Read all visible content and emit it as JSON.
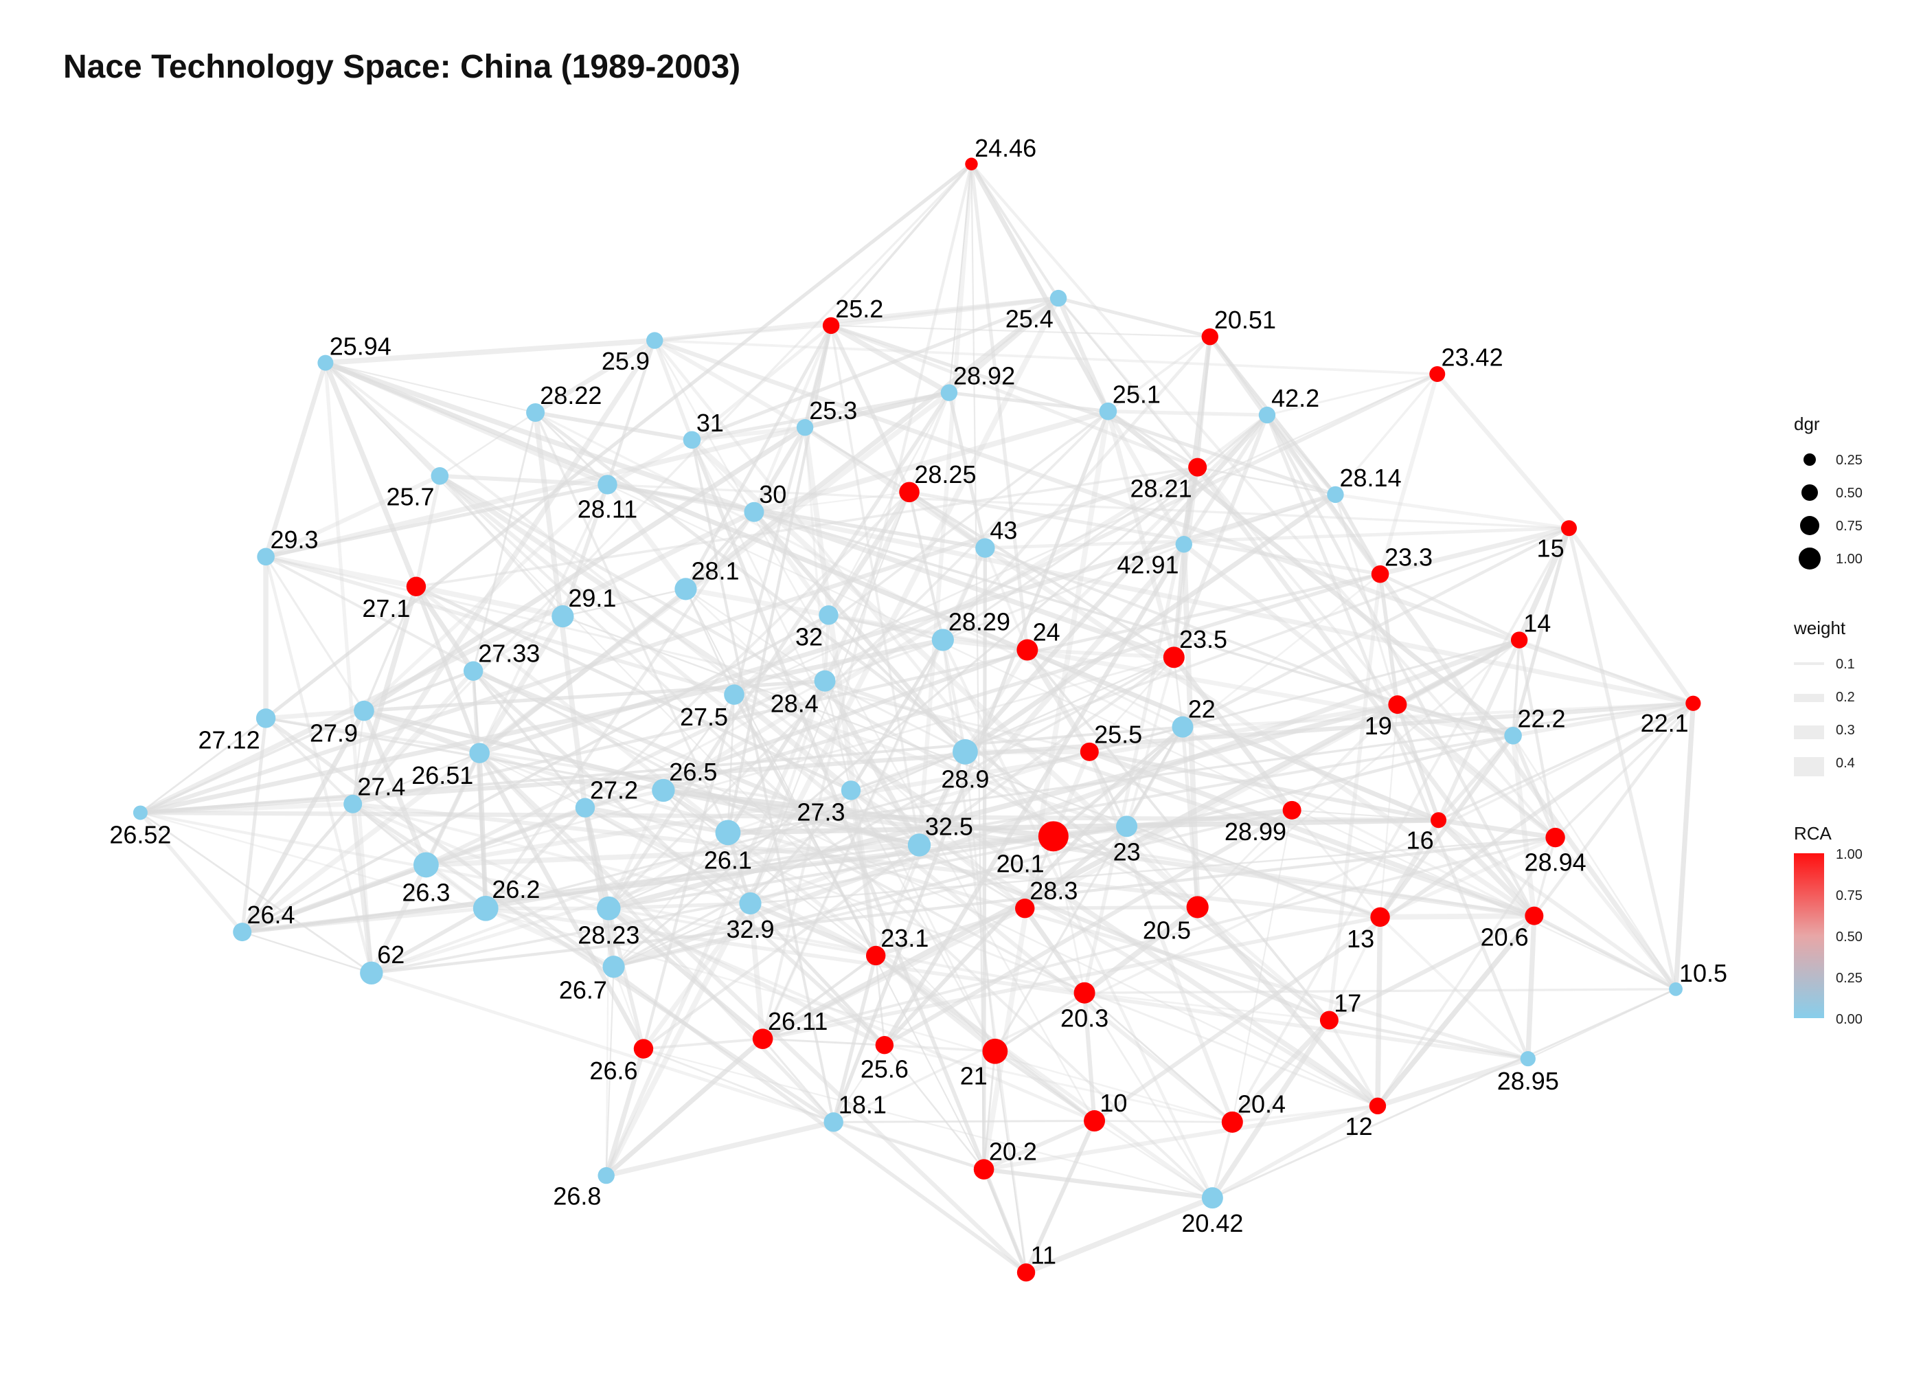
{
  "title": "Nace Technology Space: China (1989-2003)",
  "colors": {
    "rca_low": "#87ceeb",
    "rca_high": "#ff0000",
    "edge": "#dcdcdc",
    "background": "#ffffff"
  },
  "nodes": [
    {
      "id": "24.46",
      "rca": 1.0,
      "dgr": 0.04,
      "label_pos": "ne"
    },
    {
      "id": "25.2",
      "rca": 1.0,
      "dgr": 0.15,
      "label_pos": "ne"
    },
    {
      "id": "25.4",
      "rca": 0.0,
      "dgr": 0.15,
      "label_pos": "sw"
    },
    {
      "id": "20.51",
      "rca": 1.0,
      "dgr": 0.15,
      "label_pos": "ne"
    },
    {
      "id": "23.42",
      "rca": 1.0,
      "dgr": 0.12,
      "label_pos": "ne"
    },
    {
      "id": "25.94",
      "rca": 0.0,
      "dgr": 0.12,
      "label_pos": "ne"
    },
    {
      "id": "25.9",
      "rca": 0.0,
      "dgr": 0.15,
      "label_pos": "sw"
    },
    {
      "id": "28.92",
      "rca": 0.0,
      "dgr": 0.15,
      "label_pos": "ne"
    },
    {
      "id": "28.22",
      "rca": 0.0,
      "dgr": 0.22,
      "label_pos": "ne"
    },
    {
      "id": "25.3",
      "rca": 0.0,
      "dgr": 0.15,
      "label_pos": "ne"
    },
    {
      "id": "25.1",
      "rca": 0.0,
      "dgr": 0.18,
      "label_pos": "ne"
    },
    {
      "id": "42.2",
      "rca": 0.0,
      "dgr": 0.15,
      "label_pos": "ne"
    },
    {
      "id": "31",
      "rca": 0.0,
      "dgr": 0.18,
      "label_pos": "ne"
    },
    {
      "id": "25.7",
      "rca": 0.0,
      "dgr": 0.18,
      "label_pos": "sw"
    },
    {
      "id": "28.11",
      "rca": 0.0,
      "dgr": 0.26,
      "label_pos": "s"
    },
    {
      "id": "30",
      "rca": 0.0,
      "dgr": 0.28,
      "label_pos": "ne"
    },
    {
      "id": "28.25",
      "rca": 1.0,
      "dgr": 0.3,
      "label_pos": "ne"
    },
    {
      "id": "28.21",
      "rca": 1.0,
      "dgr": 0.22,
      "label_pos": "sw"
    },
    {
      "id": "28.14",
      "rca": 0.0,
      "dgr": 0.15,
      "label_pos": "ne"
    },
    {
      "id": "29.3",
      "rca": 0.0,
      "dgr": 0.18,
      "label_pos": "ne"
    },
    {
      "id": "43",
      "rca": 0.0,
      "dgr": 0.26,
      "label_pos": "ne"
    },
    {
      "id": "42.91",
      "rca": 0.0,
      "dgr": 0.15,
      "label_pos": "sw"
    },
    {
      "id": "15",
      "rca": 1.0,
      "dgr": 0.12,
      "label_pos": "sw"
    },
    {
      "id": "23.3",
      "rca": 1.0,
      "dgr": 0.18,
      "label_pos": "ne"
    },
    {
      "id": "27.1",
      "rca": 1.0,
      "dgr": 0.26,
      "label_pos": "sw"
    },
    {
      "id": "28.1",
      "rca": 0.0,
      "dgr": 0.4,
      "label_pos": "ne"
    },
    {
      "id": "29.1",
      "rca": 0.0,
      "dgr": 0.4,
      "label_pos": "ne"
    },
    {
      "id": "32",
      "rca": 0.0,
      "dgr": 0.26,
      "label_pos": "sw"
    },
    {
      "id": "28.29",
      "rca": 0.0,
      "dgr": 0.4,
      "label_pos": "ne"
    },
    {
      "id": "24",
      "rca": 1.0,
      "dgr": 0.35,
      "label_pos": "ne"
    },
    {
      "id": "23.5",
      "rca": 1.0,
      "dgr": 0.35,
      "label_pos": "ne"
    },
    {
      "id": "14",
      "rca": 1.0,
      "dgr": 0.15,
      "label_pos": "ne"
    },
    {
      "id": "27.33",
      "rca": 0.0,
      "dgr": 0.26,
      "label_pos": "ne"
    },
    {
      "id": "27.5",
      "rca": 0.0,
      "dgr": 0.3,
      "label_pos": "sw"
    },
    {
      "id": "28.4",
      "rca": 0.0,
      "dgr": 0.35,
      "label_pos": "sw"
    },
    {
      "id": "22",
      "rca": 0.0,
      "dgr": 0.35,
      "label_pos": "ne"
    },
    {
      "id": "19",
      "rca": 1.0,
      "dgr": 0.22,
      "label_pos": "sw"
    },
    {
      "id": "22.2",
      "rca": 0.0,
      "dgr": 0.18,
      "label_pos": "ne"
    },
    {
      "id": "22.1",
      "rca": 1.0,
      "dgr": 0.1,
      "label_pos": "sw"
    },
    {
      "id": "27.12",
      "rca": 0.0,
      "dgr": 0.26,
      "label_pos": "sw"
    },
    {
      "id": "27.9",
      "rca": 0.0,
      "dgr": 0.3,
      "label_pos": "sw"
    },
    {
      "id": "26.51",
      "rca": 0.0,
      "dgr": 0.3,
      "label_pos": "sw"
    },
    {
      "id": "28.9",
      "rca": 0.0,
      "dgr": 0.6,
      "label_pos": "s"
    },
    {
      "id": "25.5",
      "rca": 1.0,
      "dgr": 0.22,
      "label_pos": "ne"
    },
    {
      "id": "26.52",
      "rca": 0.0,
      "dgr": 0.08,
      "label_pos": "s"
    },
    {
      "id": "27.4",
      "rca": 0.0,
      "dgr": 0.22,
      "label_pos": "ne"
    },
    {
      "id": "27.2",
      "rca": 0.0,
      "dgr": 0.26,
      "label_pos": "ne"
    },
    {
      "id": "26.5",
      "rca": 0.0,
      "dgr": 0.45,
      "label_pos": "ne"
    },
    {
      "id": "27.3",
      "rca": 0.0,
      "dgr": 0.26,
      "label_pos": "sw"
    },
    {
      "id": "28.99",
      "rca": 1.0,
      "dgr": 0.22,
      "label_pos": "sw"
    },
    {
      "id": "16",
      "rca": 1.0,
      "dgr": 0.12,
      "label_pos": "sw"
    },
    {
      "id": "28.94",
      "rca": 1.0,
      "dgr": 0.26,
      "label_pos": "s"
    },
    {
      "id": "26.1",
      "rca": 0.0,
      "dgr": 0.6,
      "label_pos": "s"
    },
    {
      "id": "32.5",
      "rca": 0.0,
      "dgr": 0.45,
      "label_pos": "ne"
    },
    {
      "id": "20.1",
      "rca": 1.0,
      "dgr": 1.0,
      "label_pos": "sw"
    },
    {
      "id": "23",
      "rca": 0.0,
      "dgr": 0.35,
      "label_pos": "s"
    },
    {
      "id": "26.3",
      "rca": 0.0,
      "dgr": 0.6,
      "label_pos": "s"
    },
    {
      "id": "26.2",
      "rca": 0.0,
      "dgr": 0.6,
      "label_pos": "ne"
    },
    {
      "id": "28.3",
      "rca": 1.0,
      "dgr": 0.26,
      "label_pos": "ne"
    },
    {
      "id": "20.5",
      "rca": 1.0,
      "dgr": 0.4,
      "label_pos": "sw"
    },
    {
      "id": "13",
      "rca": 1.0,
      "dgr": 0.26,
      "label_pos": "sw"
    },
    {
      "id": "20.6",
      "rca": 1.0,
      "dgr": 0.22,
      "label_pos": "sw"
    },
    {
      "id": "10.5",
      "rca": 0.0,
      "dgr": 0.06,
      "label_pos": "ne"
    },
    {
      "id": "26.4",
      "rca": 0.0,
      "dgr": 0.22,
      "label_pos": "ne"
    },
    {
      "id": "28.23",
      "rca": 0.0,
      "dgr": 0.5,
      "label_pos": "s"
    },
    {
      "id": "32.9",
      "rca": 0.0,
      "dgr": 0.4,
      "label_pos": "s"
    },
    {
      "id": "62",
      "rca": 0.0,
      "dgr": 0.45,
      "label_pos": "ne"
    },
    {
      "id": "23.1",
      "rca": 1.0,
      "dgr": 0.26,
      "label_pos": "ne"
    },
    {
      "id": "26.7",
      "rca": 0.0,
      "dgr": 0.4,
      "label_pos": "sw"
    },
    {
      "id": "20.3",
      "rca": 1.0,
      "dgr": 0.35,
      "label_pos": "s"
    },
    {
      "id": "17",
      "rca": 1.0,
      "dgr": 0.22,
      "label_pos": "ne"
    },
    {
      "id": "26.11",
      "rca": 1.0,
      "dgr": 0.3,
      "label_pos": "ne"
    },
    {
      "id": "26.6",
      "rca": 1.0,
      "dgr": 0.26,
      "label_pos": "sw"
    },
    {
      "id": "25.6",
      "rca": 1.0,
      "dgr": 0.2,
      "label_pos": "s"
    },
    {
      "id": "21",
      "rca": 1.0,
      "dgr": 0.6,
      "label_pos": "sw"
    },
    {
      "id": "28.95",
      "rca": 0.0,
      "dgr": 0.1,
      "label_pos": "s"
    },
    {
      "id": "18.1",
      "rca": 0.0,
      "dgr": 0.26,
      "label_pos": "ne"
    },
    {
      "id": "10",
      "rca": 1.0,
      "dgr": 0.35,
      "label_pos": "ne"
    },
    {
      "id": "20.4",
      "rca": 1.0,
      "dgr": 0.35,
      "label_pos": "ne"
    },
    {
      "id": "12",
      "rca": 1.0,
      "dgr": 0.15,
      "label_pos": "sw"
    },
    {
      "id": "20.2",
      "rca": 1.0,
      "dgr": 0.3,
      "label_pos": "ne"
    },
    {
      "id": "26.8",
      "rca": 0.0,
      "dgr": 0.15,
      "label_pos": "sw"
    },
    {
      "id": "20.42",
      "rca": 0.0,
      "dgr": 0.35,
      "label_pos": "s"
    },
    {
      "id": "11",
      "rca": 1.0,
      "dgr": 0.2,
      "label_pos": "ne"
    }
  ],
  "legend": {
    "dgr": {
      "title": "dgr",
      "breaks": [
        "0.25",
        "0.50",
        "0.75",
        "1.00"
      ]
    },
    "weight": {
      "title": "weight",
      "breaks": [
        "0.1",
        "0.2",
        "0.3",
        "0.4"
      ]
    },
    "rca": {
      "title": "RCA",
      "breaks": [
        "1.00",
        "0.75",
        "0.50",
        "0.25",
        "0.00"
      ]
    }
  }
}
